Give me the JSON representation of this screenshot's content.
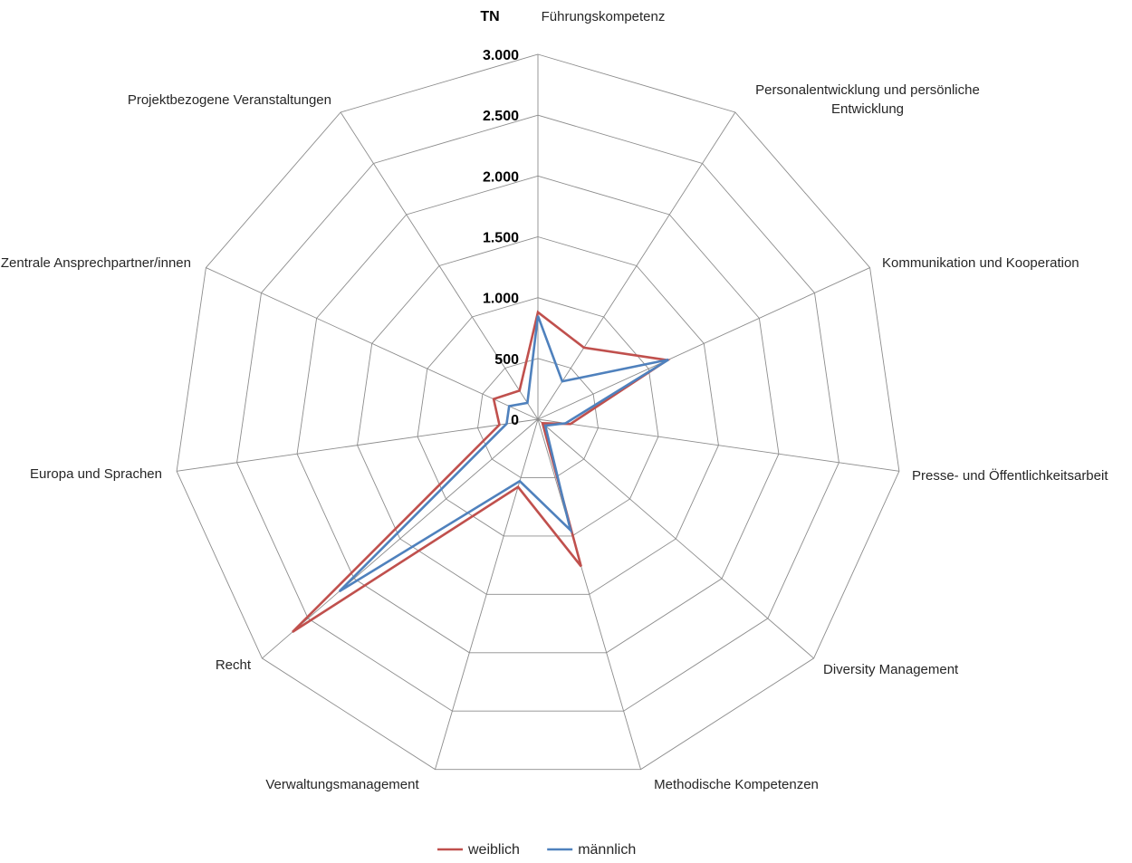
{
  "chart_data": {
    "type": "radar",
    "unit_label": "TN",
    "ticks": [
      0,
      500,
      1000,
      1500,
      2000,
      2500,
      3000
    ],
    "tick_labels": [
      "0",
      "500",
      "1.000",
      "1.500",
      "2.000",
      "2.500",
      "3.000"
    ],
    "rmax": 3000,
    "categories": [
      "Führungskompetenz",
      "Personalentwicklung und persönliche Entwicklung",
      "Kommunikation und Kooperation",
      "Presse- und Öffentlichkeitsarbeit",
      "Diversity Management",
      "Methodische Kompetenzen",
      "Verwaltungsmanagement",
      "Recht",
      "Europa und Sprachen",
      "Zentrale Ansprechpartner/innen",
      "Projektbezogene Veranstaltungen"
    ],
    "series": [
      {
        "name": "weiblich",
        "color": "#c0504d",
        "values": [
          880,
          700,
          1170,
          270,
          50,
          1260,
          580,
          2670,
          320,
          400,
          280
        ]
      },
      {
        "name": "männlich",
        "color": "#4f81bd",
        "values": [
          850,
          370,
          1180,
          230,
          80,
          950,
          530,
          2160,
          260,
          260,
          160
        ]
      }
    ],
    "legend_position": "bottom"
  }
}
